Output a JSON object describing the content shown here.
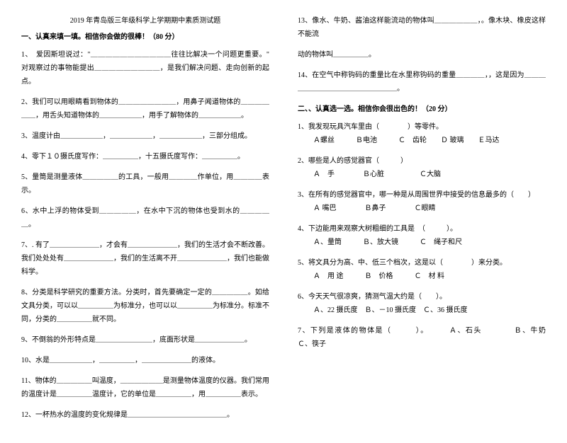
{
  "title": "2019 年青岛版三年级科学上学期期中素质测试题",
  "section1_head": "一、认真来填一填。相信你会做的很棒！（80 分）",
  "section2_head": "二、、认真选一选。相信你会很出色的！（20 分）",
  "left": {
    "q1": "1、　爱因斯坦说过：\"＿＿＿＿＿＿＿＿＿＿＿往往比解决一个问题更重要。\" 对观察过的事物能提出＿＿＿＿＿＿＿＿＿，是我们解决问题、走向创新的起点。",
    "q2": "2、我们可以用眼睛看到物体的＿＿＿＿＿＿＿＿，用鼻子闻道物体的＿＿＿＿＿＿，用舌头知道物体的＿＿＿＿＿＿，用手了解物体的＿＿＿＿＿＿。",
    "q3": "3、温度计由＿＿＿＿＿＿，＿＿＿＿＿＿，＿＿＿＿＿＿，三部分组成。",
    "q4": "4、零下１０摄氏度写作：＿＿＿＿＿，十五摄氏度写作：＿＿＿＿＿。",
    "q5": "5、量筒是测量液体＿＿＿＿＿的工具，一般用＿＿＿＿作单位，用＿＿＿＿表示。",
    "q6": "6、水中上浮的物体受到＿＿＿＿＿，在水中下沉的物体也受到水的＿＿＿＿＿。",
    "q7": "7、. 有了＿＿＿＿＿＿＿，才会有＿＿＿＿＿＿＿，我们的生活才会不断改善。我们处处处有＿＿＿＿＿＿＿，我们的生活离不开＿＿＿＿＿＿＿，我们也能做科学。",
    "q8": "8、分类是科学研究的重要方法。分类时，首先要确定一定的＿＿＿＿＿。如给文具分类，可以以＿＿＿＿＿为标准分，也可以以＿＿＿＿＿为标准分。标准不同，分类的＿＿＿＿＿就不同。",
    "q9": "9、不倒翁的外形特点是＿＿＿＿＿＿＿＿，底面形状是＿＿＿＿＿＿＿。",
    "q10": "10、水是＿＿＿＿＿＿，＿＿＿＿＿，＿＿＿＿＿＿＿的液体。",
    "q11": "11、物体的＿＿＿＿＿叫温度，＿＿＿＿＿＿是测量物体温度的仪器。我们常用的温度计是＿＿＿＿＿温度计，它的单位是＿＿＿＿＿，用＿＿＿＿＿表示。",
    "q12": "12、一杯热水的温度的变化规律是＿＿＿＿＿＿＿＿＿＿＿＿＿＿。"
  },
  "right": {
    "q13": "13、像水、牛奶、酱油这样能流动的物体叫＿＿＿＿＿＿，。像木块、橡皮这样不能流",
    "q13b": "动的物体叫＿＿＿＿＿。",
    "q14": "14、在空气中称钩码的重量比在水里称钩码的重量＿＿＿＿，，这是因为＿＿＿＿＿＿＿＿＿＿＿＿＿＿＿＿＿。",
    "s2q1": "1、我发现玩具汽车里由（　　　　）等零件。",
    "s2q1opt": "Ａ螺丝　　　Ｂ电池　　　Ｃ　齿轮　　Ｄ 玻璃　　Ｅ马达",
    "s2q2": "2、哪些是人的感觉器官（　　　）",
    "s2q2opt": "Ａ　手　　　　Ｂ心脏　　　　　Ｃ大脑",
    "s2q3": "3、在所有的感觉器官中，哪一种是从周围世界中接受的信息最多的（　　）",
    "s2q3opt": "Ａ 嘴巴　　　　Ｂ鼻子　　　　Ｃ眼睛",
    "s2q4": "4、下边能用来观察大树粗细的工具是　（　　　）。",
    "s2q4opt": "Ａ、量筒　　　Ｂ、放大镜　　　Ｃ　绳子和尺",
    "s2q5": "5、将文具分为高、中、低三个档次，这是以（　　　　）来分类。",
    "s2q5opt": "Ａ　用 途　　　Ｂ　价格　　　Ｃ　材 料",
    "s2q6": "6、今天天气很凉爽，猜测气温大约是（　　）。",
    "s2q6opt": "Ａ、22 摄氏度　Ｂ、－10 摄氏度　Ｃ、36 摄氏度",
    "s2q7": "7、下列是液体的物体是（　　　）。　　　Ａ、石头　　　　Ｂ、牛奶　　　Ｃ、筷子"
  }
}
